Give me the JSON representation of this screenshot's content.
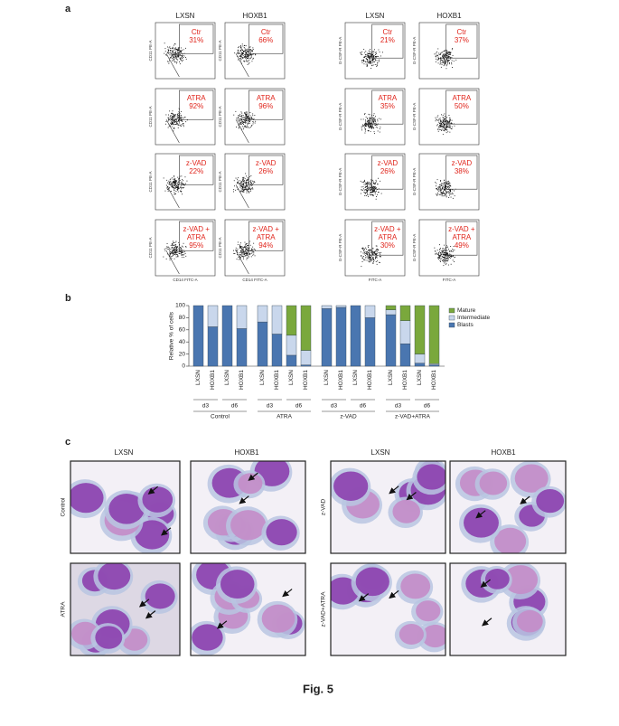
{
  "caption": "Fig. 5",
  "panel_a": {
    "label": "a",
    "columns": [
      "LXSN",
      "HOXB1",
      "LXSN",
      "HOXB1"
    ],
    "y_label_left": "CD11 PE-A",
    "y_label_right": "G-CSF-R PE-A",
    "x_label_left": "CD14 FITC-A",
    "x_label_right": "FITC-A",
    "rows": [
      [
        {
          "gate": [
            "Ctr"
          ],
          "pct": "31%"
        },
        {
          "gate": [
            "Ctr"
          ],
          "pct": "66%"
        },
        {
          "gate": [
            "Ctr"
          ],
          "pct": "21%"
        },
        {
          "gate": [
            "Ctr"
          ],
          "pct": "37%"
        }
      ],
      [
        {
          "gate": [
            "ATRA"
          ],
          "pct": "92%"
        },
        {
          "gate": [
            "ATRA"
          ],
          "pct": "96%"
        },
        {
          "gate": [
            "ATRA"
          ],
          "pct": "35%"
        },
        {
          "gate": [
            "ATRA"
          ],
          "pct": "50%"
        }
      ],
      [
        {
          "gate": [
            "z-VAD"
          ],
          "pct": "22%"
        },
        {
          "gate": [
            "z-VAD"
          ],
          "pct": "26%"
        },
        {
          "gate": [
            "z-VAD"
          ],
          "pct": "26%"
        },
        {
          "gate": [
            "z-VAD"
          ],
          "pct": "38%"
        }
      ],
      [
        {
          "gate": [
            "z-VAD +",
            "ATRA"
          ],
          "pct": "95%"
        },
        {
          "gate": [
            "z-VAD +",
            "ATRA"
          ],
          "pct": "94%"
        },
        {
          "gate": [
            "z-VAD +",
            "ATRA"
          ],
          "pct": "30%"
        },
        {
          "gate": [
            "z-VAD +",
            "ATRA"
          ],
          "pct": "49%"
        }
      ]
    ]
  },
  "chart_data": {
    "label": "b",
    "type": "bar",
    "stacked": true,
    "y_label": "Relative % of cells",
    "categories": [
      "LXSN",
      "HOXB1",
      "LXSN",
      "HOXB1",
      "LXSN",
      "HOXB1",
      "LXSN",
      "HOXB1",
      "LXSN",
      "HOXB1",
      "LXSN",
      "HOXB1",
      "LXSN",
      "HOXB1",
      "LXSN",
      "HOXB1"
    ],
    "days": [
      "d3",
      "d6",
      "d3",
      "d6",
      "d3",
      "d6",
      "d3",
      "d6"
    ],
    "groups": [
      "Control",
      "ATRA",
      "z-VAD",
      "z-VAD+ATRA"
    ],
    "series": [
      {
        "name": "Mature",
        "color": "#7aa83c",
        "values": [
          0,
          0,
          0,
          0,
          0,
          0,
          49,
          74,
          0,
          0,
          0,
          0,
          7,
          25,
          80,
          96
        ]
      },
      {
        "name": "Intermediate",
        "color": "#c9d7ec",
        "values": [
          0,
          35,
          0,
          38,
          27,
          47,
          33,
          24,
          5,
          3,
          0,
          20,
          8,
          38,
          15,
          2
        ]
      },
      {
        "name": "Blasts",
        "color": "#4a76b0",
        "values": [
          100,
          65,
          100,
          62,
          73,
          53,
          18,
          2,
          95,
          97,
          100,
          80,
          85,
          37,
          5,
          2
        ]
      }
    ],
    "ylim": [
      0,
      100
    ],
    "yticks": [
      0,
      20,
      40,
      60,
      80,
      100
    ],
    "legend": "right"
  },
  "panel_c": {
    "label": "c",
    "columns": [
      "LXSN",
      "HOXB1",
      "LXSN",
      "HOXB1"
    ],
    "rows_left": [
      "Control",
      "ATRA"
    ],
    "rows_right": [
      "z-VAD",
      "z-VAD+ATRA"
    ]
  }
}
